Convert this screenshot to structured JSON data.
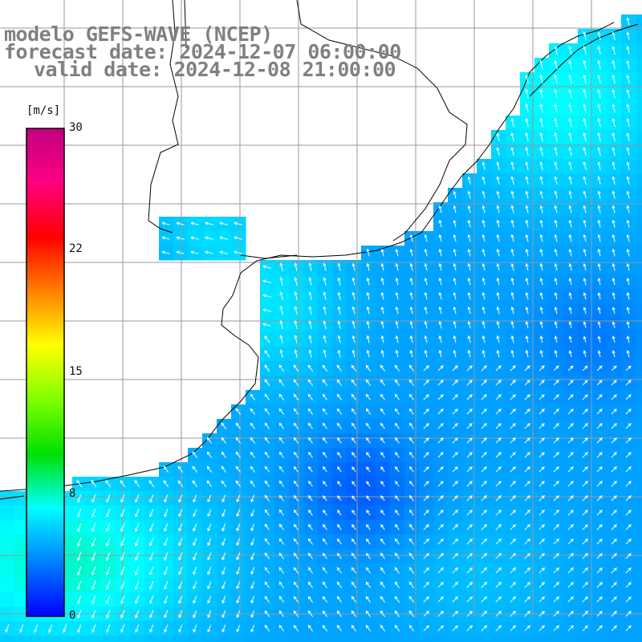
{
  "title": {
    "line1": "modelo GEFS-WAVE (NCEP)",
    "line2": "forecast date: 2024-12-07 06:00:00",
    "line3": "valid date: 2024-12-08 21:00:00"
  },
  "colorbar": {
    "units": "[m/s]",
    "ticks": [
      "30",
      "22",
      "15",
      "8",
      "0"
    ],
    "stops": [
      "#0000ff",
      "#0080ff",
      "#00ffff",
      "#00e000",
      "#80ff00",
      "#ffff00",
      "#ff8000",
      "#ff0000",
      "#ff0080",
      "#c00080"
    ]
  },
  "colors": {
    "land": "#ffffff",
    "grid": "#999999",
    "coast": "#000000",
    "arrow": "#ffffff"
  }
}
